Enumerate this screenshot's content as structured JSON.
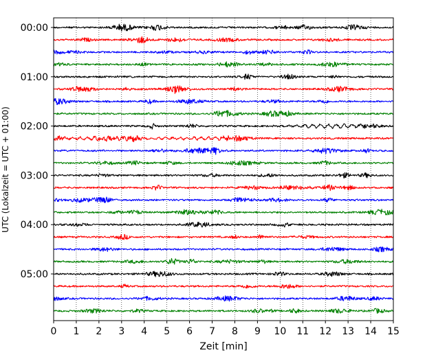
{
  "chart_data": {
    "type": "line",
    "title": "",
    "xlabel": "Zeit  [min]",
    "ylabel": "UTC (Lokalzeit = UTC + 01:00)",
    "xlim": [
      0,
      15
    ],
    "x_ticks": [
      "0",
      "1",
      "2",
      "3",
      "4",
      "5",
      "6",
      "7",
      "8",
      "9",
      "10",
      "11",
      "12",
      "13",
      "14",
      "15"
    ],
    "y_ticks": [
      "00:00",
      "01:00",
      "02:00",
      "03:00",
      "04:00",
      "05:00"
    ],
    "grid": "vertical dotted",
    "trace_interval_min": 15,
    "trace_count": 24,
    "color_cycle": [
      "#000000",
      "#ff0000",
      "#0000ff",
      "#008000"
    ]
  }
}
